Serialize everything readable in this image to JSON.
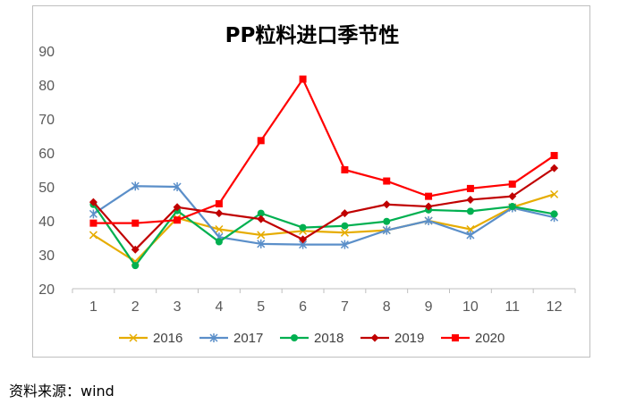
{
  "chart_data": {
    "type": "line",
    "title": "PP粒料进口季节性",
    "xlabel": "",
    "ylabel": "",
    "categories": [
      "1",
      "2",
      "3",
      "4",
      "5",
      "6",
      "7",
      "8",
      "9",
      "10",
      "11",
      "12"
    ],
    "ylim": [
      20,
      90
    ],
    "yticks": [
      20,
      30,
      40,
      50,
      60,
      70,
      80,
      90
    ],
    "grid": false,
    "legend_position": "bottom",
    "series": [
      {
        "name": "2016",
        "color": "#E6AC00",
        "marker": "x",
        "values": [
          35.8,
          28.0,
          40.8,
          37.5,
          35.8,
          37.0,
          36.5,
          37.2,
          40.0,
          37.5,
          44.0,
          47.8
        ]
      },
      {
        "name": "2017",
        "color": "#5B8FC9",
        "marker": "star",
        "values": [
          42.0,
          50.2,
          50.0,
          35.2,
          33.2,
          33.0,
          33.0,
          37.2,
          40.0,
          35.8,
          43.8,
          41.0
        ]
      },
      {
        "name": "2018",
        "color": "#00B050",
        "marker": "circle",
        "values": [
          44.8,
          26.8,
          43.0,
          33.8,
          42.2,
          38.0,
          38.5,
          39.8,
          43.2,
          42.8,
          44.2,
          42.0
        ]
      },
      {
        "name": "2019",
        "color": "#C00000",
        "marker": "diamond",
        "values": [
          45.5,
          31.5,
          44.0,
          42.2,
          40.5,
          34.5,
          42.2,
          44.8,
          44.2,
          46.2,
          47.2,
          55.5
        ]
      },
      {
        "name": "2020",
        "color": "#FF0000",
        "marker": "square",
        "values": [
          39.3,
          39.3,
          40.2,
          45.0,
          63.6,
          81.7,
          55.0,
          51.7,
          47.2,
          49.5,
          50.8,
          59.2
        ]
      }
    ]
  },
  "source_note": "资料来源：wind"
}
